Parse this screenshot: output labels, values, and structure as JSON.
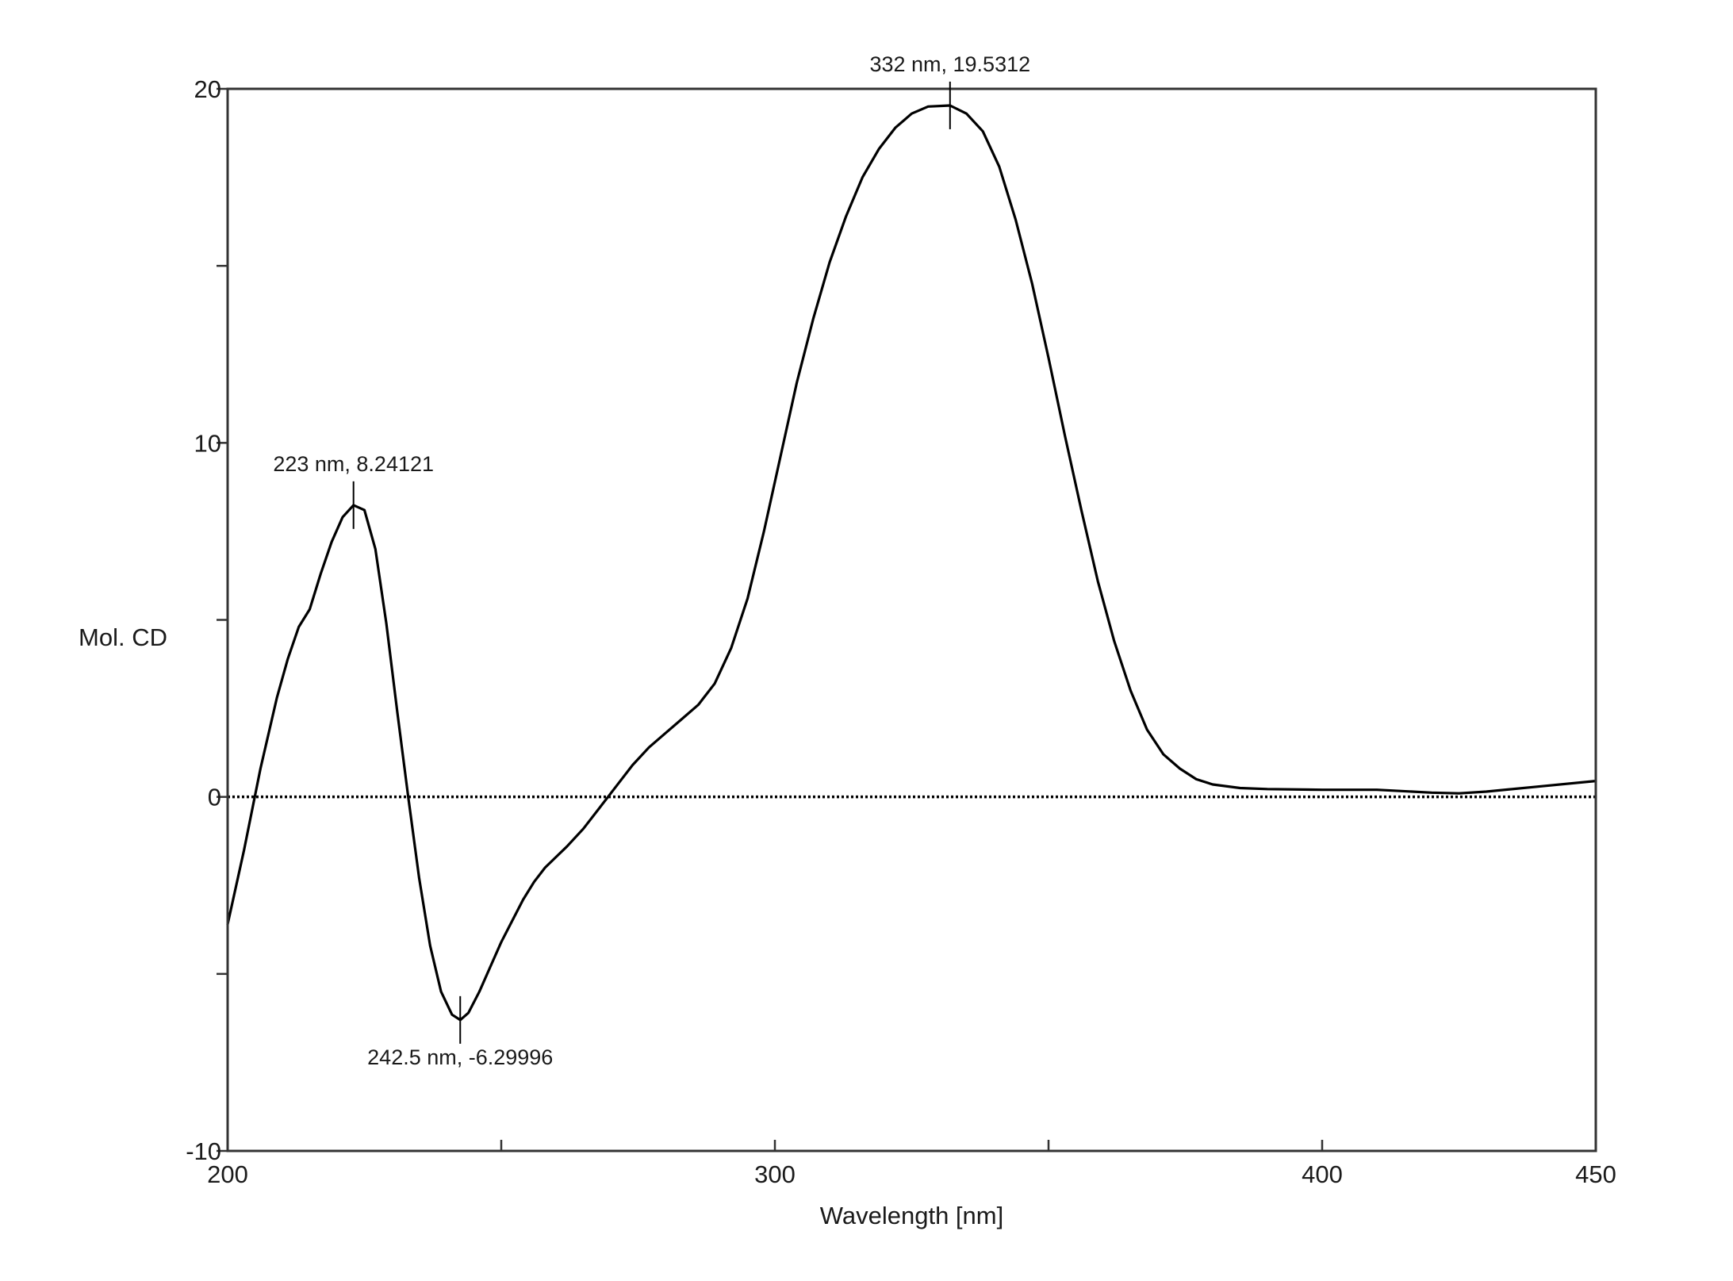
{
  "chart_data": {
    "type": "line",
    "xlabel": "Wavelength [nm]",
    "ylabel": "Mol. CD",
    "xlim": [
      200,
      450
    ],
    "ylim": [
      -10,
      20
    ],
    "x_ticks": [
      {
        "value": 200,
        "label": "200"
      },
      {
        "value": 250,
        "label": ""
      },
      {
        "value": 300,
        "label": "300"
      },
      {
        "value": 350,
        "label": ""
      },
      {
        "value": 400,
        "label": "400"
      },
      {
        "value": 450,
        "label": "450"
      }
    ],
    "y_ticks": [
      {
        "value": -10,
        "label": "-10"
      },
      {
        "value": -5,
        "label": ""
      },
      {
        "value": 0,
        "label": "0"
      },
      {
        "value": 5,
        "label": ""
      },
      {
        "value": 10,
        "label": "10"
      },
      {
        "value": 15,
        "label": ""
      },
      {
        "value": 20,
        "label": "20"
      }
    ],
    "grid": false,
    "baseline": {
      "y": 0,
      "style": "dotted"
    },
    "series": [
      {
        "color": "#000000",
        "points": [
          [
            200,
            -3.6
          ],
          [
            203,
            -1.5
          ],
          [
            206,
            0.8
          ],
          [
            209,
            2.8
          ],
          [
            211,
            3.9
          ],
          [
            213,
            4.8
          ],
          [
            215,
            5.3
          ],
          [
            217,
            6.3
          ],
          [
            219,
            7.2
          ],
          [
            221,
            7.9
          ],
          [
            223,
            8.24
          ],
          [
            225,
            8.1
          ],
          [
            227,
            7.0
          ],
          [
            229,
            4.9
          ],
          [
            231,
            2.4
          ],
          [
            233,
            0.0
          ],
          [
            235,
            -2.3
          ],
          [
            237,
            -4.2
          ],
          [
            239,
            -5.5
          ],
          [
            241,
            -6.15
          ],
          [
            242.5,
            -6.3
          ],
          [
            244,
            -6.1
          ],
          [
            246,
            -5.5
          ],
          [
            248,
            -4.8
          ],
          [
            250,
            -4.1
          ],
          [
            252,
            -3.5
          ],
          [
            254,
            -2.9
          ],
          [
            256,
            -2.4
          ],
          [
            258,
            -2.0
          ],
          [
            260,
            -1.7
          ],
          [
            262,
            -1.4
          ],
          [
            265,
            -0.9
          ],
          [
            268,
            -0.3
          ],
          [
            271,
            0.3
          ],
          [
            274,
            0.9
          ],
          [
            277,
            1.4
          ],
          [
            280,
            1.8
          ],
          [
            283,
            2.2
          ],
          [
            286,
            2.6
          ],
          [
            289,
            3.2
          ],
          [
            292,
            4.2
          ],
          [
            295,
            5.6
          ],
          [
            298,
            7.5
          ],
          [
            301,
            9.6
          ],
          [
            304,
            11.7
          ],
          [
            307,
            13.5
          ],
          [
            310,
            15.1
          ],
          [
            313,
            16.4
          ],
          [
            316,
            17.5
          ],
          [
            319,
            18.3
          ],
          [
            322,
            18.9
          ],
          [
            325,
            19.3
          ],
          [
            328,
            19.5
          ],
          [
            332,
            19.53
          ],
          [
            335,
            19.3
          ],
          [
            338,
            18.8
          ],
          [
            341,
            17.8
          ],
          [
            344,
            16.3
          ],
          [
            347,
            14.5
          ],
          [
            350,
            12.4
          ],
          [
            353,
            10.2
          ],
          [
            356,
            8.1
          ],
          [
            359,
            6.1
          ],
          [
            362,
            4.4
          ],
          [
            365,
            3.0
          ],
          [
            368,
            1.9
          ],
          [
            371,
            1.2
          ],
          [
            374,
            0.8
          ],
          [
            377,
            0.5
          ],
          [
            380,
            0.35
          ],
          [
            385,
            0.25
          ],
          [
            390,
            0.22
          ],
          [
            400,
            0.2
          ],
          [
            410,
            0.2
          ],
          [
            420,
            0.12
          ],
          [
            425,
            0.1
          ],
          [
            430,
            0.15
          ],
          [
            440,
            0.3
          ],
          [
            450,
            0.45
          ]
        ]
      }
    ],
    "annotations": [
      {
        "x": 223,
        "y": 8.24121,
        "text": "223 nm, 8.24121",
        "placement": "above"
      },
      {
        "x": 242.5,
        "y": -6.29996,
        "text": "242.5 nm, -6.29996",
        "placement": "below"
      },
      {
        "x": 332,
        "y": 19.5312,
        "text": "332 nm, 19.5312",
        "placement": "above"
      }
    ]
  }
}
